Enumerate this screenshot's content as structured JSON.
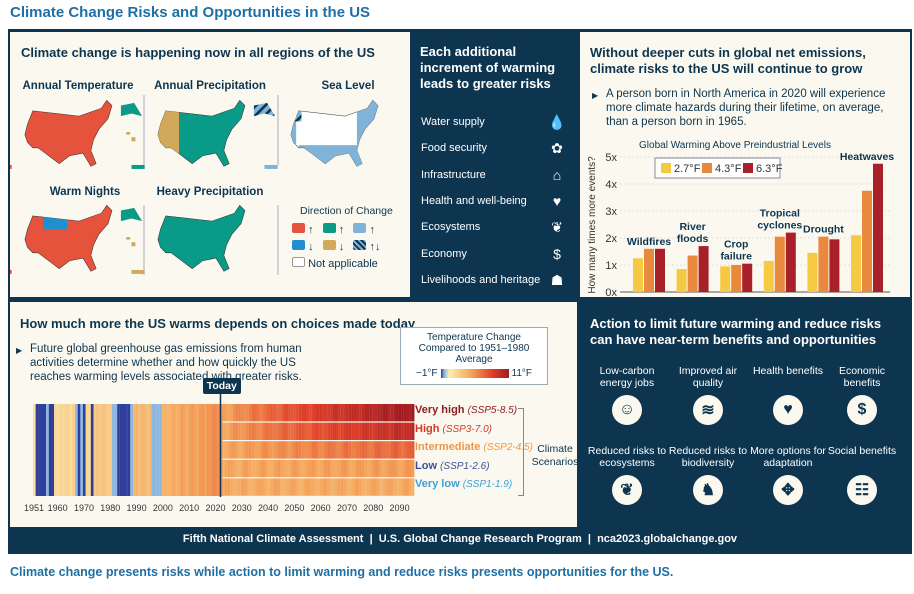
{
  "title": "Climate Change Risks and Opportunities in the US",
  "panel_maps": {
    "heading": "Climate change is happening now in all regions of the US",
    "maps": [
      "Annual Temperature",
      "Annual Precipitation",
      "Sea Level",
      "Warm Nights",
      "Heavy Precipitation"
    ],
    "legend": {
      "title": "Direction of Change",
      "not_applicable": "Not applicable",
      "up": "↑",
      "down": "↓",
      "both": "↑↓"
    },
    "colors": {
      "temp_up": "#e5533d",
      "temp_down": "#1f8fd0",
      "precip_up": "#0a9a88",
      "precip_down": "#d2a95a",
      "sea_up": "#7fb3d8"
    }
  },
  "panel_risks": {
    "heading": "Each additional increment of warming leads to greater risks",
    "items": [
      {
        "label": "Water supply",
        "icon": "water-drop-icon",
        "glyph": "💧"
      },
      {
        "label": "Food security",
        "icon": "plant-sun-icon",
        "glyph": "✿"
      },
      {
        "label": "Infrastructure",
        "icon": "house-icon",
        "glyph": "⌂"
      },
      {
        "label": "Health and well-being",
        "icon": "heart-pulse-icon",
        "glyph": "♥"
      },
      {
        "label": "Ecosystems",
        "icon": "sprout-icon",
        "glyph": "❦"
      },
      {
        "label": "Economy",
        "icon": "dollar-icon",
        "glyph": "$"
      },
      {
        "label": "Livelihoods and heritage",
        "icon": "people-icon",
        "glyph": "☗"
      }
    ]
  },
  "panel_events": {
    "heading": "Without deeper cuts in global net emissions, climate risks to the US will continue to grow",
    "bullet": "A person born in North America in 2020 will experience more climate hazards during their lifetime, on average, than a person born in 1965."
  },
  "chart_data": {
    "type": "bar",
    "title": "Global Warming Above Preindustrial Levels",
    "ylabel": "How many times more events?",
    "ylim": [
      0,
      5
    ],
    "yticks": [
      "0x",
      "1x",
      "2x",
      "3x",
      "4x",
      "5x"
    ],
    "categories": [
      "Wildfires",
      "River floods",
      "Crop failure",
      "Tropical cyclones",
      "Drought",
      "Heatwaves"
    ],
    "series": [
      {
        "name": "2.7°F",
        "color": "#f6c945",
        "values": [
          1.25,
          0.85,
          0.95,
          1.15,
          1.45,
          2.1
        ]
      },
      {
        "name": "4.3°F",
        "color": "#e8893e",
        "values": [
          1.6,
          1.35,
          1.0,
          2.05,
          2.05,
          3.75
        ]
      },
      {
        "name": "6.3°F",
        "color": "#a8202a",
        "values": [
          1.6,
          1.7,
          1.05,
          2.2,
          1.95,
          4.75
        ]
      }
    ],
    "grid": true,
    "legend": "top"
  },
  "panel_warming": {
    "heading": "How much more the US warms depends on choices made today",
    "bullet": "Future global greenhouse gas emissions from human activities determine whether and how quickly the US reaches warming levels associated with greater risks.",
    "scale_title": "Temperature Change Compared to 1951–1980 Average",
    "scale_min": "−1°F",
    "scale_max": "11°F",
    "today": "Today",
    "today_year": 2022,
    "xticks": [
      "1951",
      "1960",
      "1970",
      "1980",
      "1990",
      "2000",
      "2010",
      "2020",
      "2030",
      "2040",
      "2050",
      "2060",
      "2070",
      "2080",
      "2090"
    ],
    "scenarios_label": "Climate Scenarios",
    "scenarios": [
      {
        "name": "Very high",
        "code": "(SSP5-8.5)",
        "color": "#8e1b1f"
      },
      {
        "name": "High",
        "code": "(SSP3-7.0)",
        "color": "#d7362a"
      },
      {
        "name": "Intermediate",
        "code": "(SSP2-4.5)",
        "color": "#f0964a"
      },
      {
        "name": "Low",
        "code": "(SSP1-2.6)",
        "color": "#3e4f9a"
      },
      {
        "name": "Very low",
        "code": "(SSP1-1.9)",
        "color": "#3aa1d8"
      }
    ]
  },
  "panel_benefits": {
    "heading": "Action to limit future warming and reduce risks can have near-term benefits and opportunities",
    "items": [
      {
        "label": "Low-carbon energy jobs",
        "icon": "worker-icon",
        "glyph": "☺"
      },
      {
        "label": "Improved air quality",
        "icon": "wind-icon",
        "glyph": "≋"
      },
      {
        "label": "Health benefits",
        "icon": "heart-pulse-icon",
        "glyph": "♥"
      },
      {
        "label": "Economic benefits",
        "icon": "dollar-icon",
        "glyph": "$"
      },
      {
        "label": "Reduced risks to ecosystems",
        "icon": "sprout-icon",
        "glyph": "❦"
      },
      {
        "label": "Reduced risks to biodiversity",
        "icon": "moose-icon",
        "glyph": "♞"
      },
      {
        "label": "More options for adaptation",
        "icon": "puzzle-icon",
        "glyph": "✥"
      },
      {
        "label": "Social benefits",
        "icon": "group-icon",
        "glyph": "☷"
      }
    ]
  },
  "footer": {
    "parts": [
      "Fifth National Climate Assessment",
      "U.S. Global Change Research Program",
      "nca2023.globalchange.gov"
    ],
    "sep": "|"
  },
  "caption": "Climate change presents risks while action to limit warming and reduce risks presents opportunities for the US."
}
